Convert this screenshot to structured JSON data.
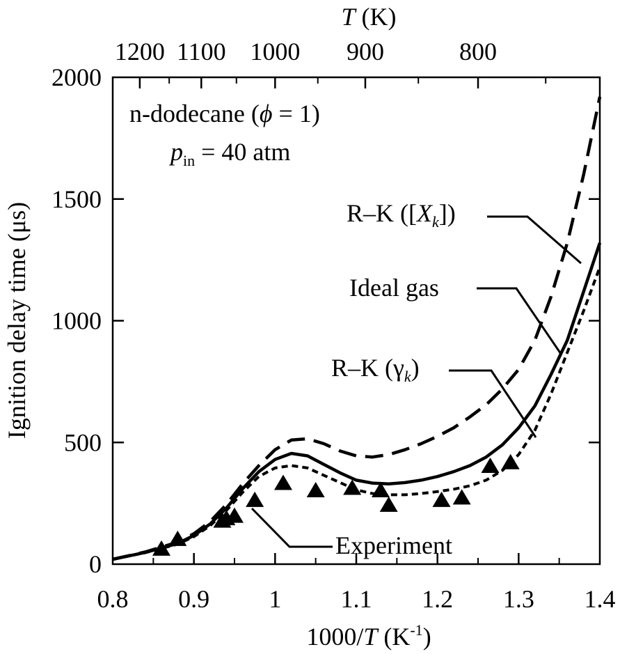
{
  "chart_data": {
    "type": "line",
    "xlabel": "1000/T (K-1)",
    "ylabel": "Ignition delay time (μs)",
    "top_axis_label": "T (K)",
    "xlim": [
      0.8,
      1.4
    ],
    "ylim": [
      0,
      2000
    ],
    "x_ticks": [
      "0.8",
      "0.9",
      "1",
      "1.1",
      "1.2",
      "1.3",
      "1.4"
    ],
    "y_ticks": [
      "0",
      "500",
      "1000",
      "1500",
      "2000"
    ],
    "top_ticks": [
      {
        "label": "1200",
        "T": 1200
      },
      {
        "label": "1100",
        "T": 1100
      },
      {
        "label": "1000",
        "T": 1000
      },
      {
        "label": "900",
        "T": 900
      },
      {
        "label": "800",
        "T": 800
      }
    ],
    "annotation_main": "n-dodecane (ϕ = 1)",
    "annotation_pressure": "pin = 40 atm",
    "grid": false,
    "series": [
      {
        "name": "R–K ([Xk])",
        "style": "dashed",
        "x": [
          0.8,
          0.84,
          0.88,
          0.9,
          0.92,
          0.94,
          0.96,
          0.98,
          1.0,
          1.02,
          1.04,
          1.06,
          1.08,
          1.1,
          1.12,
          1.14,
          1.16,
          1.18,
          1.2,
          1.22,
          1.24,
          1.26,
          1.28,
          1.3,
          1.32,
          1.34,
          1.36,
          1.38,
          1.4
        ],
        "values": [
          20,
          50,
          90,
          125,
          175,
          245,
          330,
          405,
          470,
          510,
          515,
          495,
          465,
          445,
          440,
          450,
          470,
          495,
          525,
          560,
          605,
          655,
          720,
          800,
          920,
          1100,
          1320,
          1600,
          1920
        ]
      },
      {
        "name": "Ideal gas",
        "style": "solid",
        "x": [
          0.8,
          0.84,
          0.88,
          0.9,
          0.92,
          0.94,
          0.96,
          0.98,
          1.0,
          1.02,
          1.04,
          1.06,
          1.08,
          1.1,
          1.12,
          1.14,
          1.16,
          1.18,
          1.2,
          1.22,
          1.24,
          1.26,
          1.28,
          1.3,
          1.32,
          1.34,
          1.36,
          1.38,
          1.4
        ],
        "values": [
          20,
          48,
          85,
          118,
          165,
          230,
          310,
          380,
          430,
          455,
          445,
          410,
          375,
          345,
          333,
          330,
          335,
          345,
          360,
          380,
          405,
          440,
          490,
          560,
          650,
          780,
          920,
          1120,
          1320
        ]
      },
      {
        "name": "R–K (γk)",
        "style": "dotted",
        "x": [
          0.8,
          0.84,
          0.88,
          0.9,
          0.92,
          0.94,
          0.96,
          0.98,
          1.0,
          1.02,
          1.04,
          1.06,
          1.08,
          1.1,
          1.12,
          1.14,
          1.16,
          1.18,
          1.2,
          1.22,
          1.24,
          1.26,
          1.28,
          1.3,
          1.32,
          1.34,
          1.36,
          1.38,
          1.4
        ],
        "values": [
          20,
          47,
          82,
          113,
          158,
          220,
          295,
          360,
          395,
          405,
          395,
          365,
          335,
          305,
          290,
          285,
          285,
          290,
          298,
          308,
          322,
          345,
          385,
          450,
          550,
          700,
          870,
          1040,
          1220
        ]
      },
      {
        "name": "Experiment",
        "style": "triangles",
        "x": [
          0.86,
          0.88,
          0.935,
          0.94,
          0.95,
          0.975,
          1.01,
          1.05,
          1.095,
          1.13,
          1.14,
          1.205,
          1.23,
          1.265,
          1.29
        ],
        "values": [
          60,
          100,
          175,
          185,
          195,
          260,
          330,
          300,
          310,
          300,
          240,
          260,
          270,
          400,
          415
        ]
      }
    ],
    "labels": [
      {
        "text": "R–K ([Xk])",
        "series": "R–K ([Xk])"
      },
      {
        "text": "Ideal gas",
        "series": "Ideal gas"
      },
      {
        "text": "R–K (γk)",
        "series": "R–K (γk)"
      },
      {
        "text": "Experiment",
        "series": "Experiment"
      }
    ]
  }
}
